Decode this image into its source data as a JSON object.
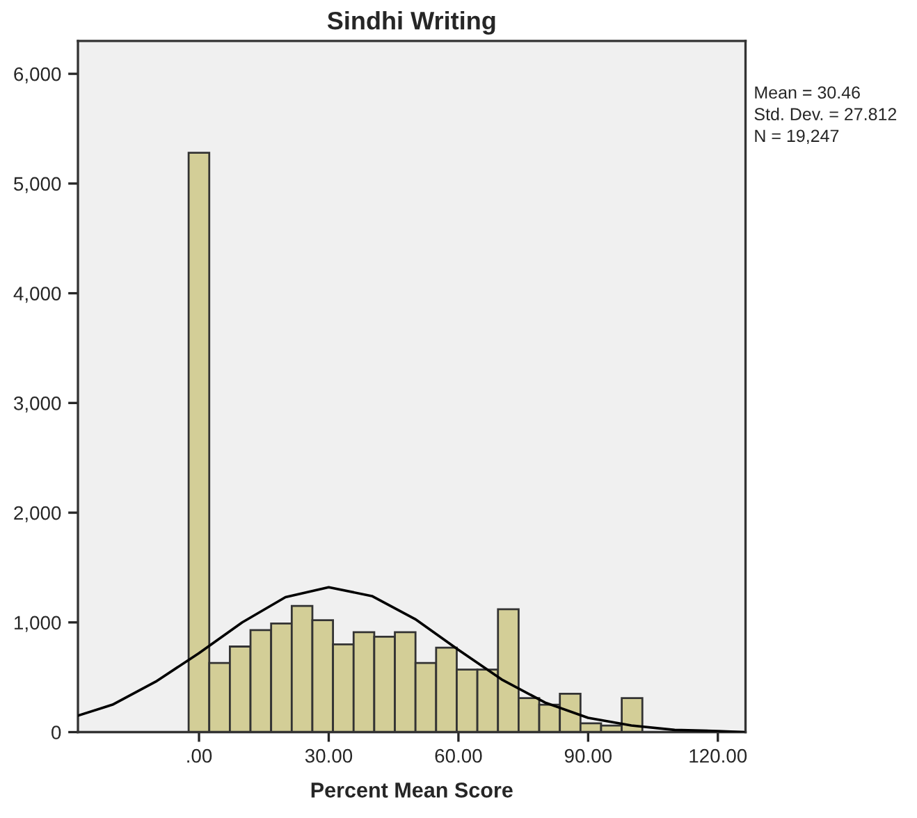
{
  "chart_data": {
    "type": "histogram",
    "title": "Sindhi Writing",
    "xlabel": "Percent Mean Score",
    "annotations": [
      "Mean = 30.46",
      "Std. Dev. = 27.812",
      "N = 19,247"
    ],
    "xlim": [
      -28,
      126.4
    ],
    "ylim": [
      0,
      6300
    ],
    "xticks": [
      {
        "value": 0,
        "label": ".00"
      },
      {
        "value": 30,
        "label": "30.00"
      },
      {
        "value": 60,
        "label": "60.00"
      },
      {
        "value": 90,
        "label": "90.00"
      },
      {
        "value": 120,
        "label": "120.00"
      }
    ],
    "yticks": [
      {
        "value": 0,
        "label": "0"
      },
      {
        "value": 1000,
        "label": "1,000"
      },
      {
        "value": 2000,
        "label": "2,000"
      },
      {
        "value": 3000,
        "label": "3,000"
      },
      {
        "value": 4000,
        "label": "4,000"
      },
      {
        "value": 5000,
        "label": "5,000"
      },
      {
        "value": 6000,
        "label": "6,000"
      }
    ],
    "grid": false,
    "legend": false,
    "series": [
      {
        "color": "#d3ce97",
        "bins": [
          -2.4,
          2.37,
          7.14,
          11.91,
          16.68,
          21.45,
          26.22,
          30.99,
          35.76,
          40.53,
          45.3,
          50.07,
          54.84,
          59.61,
          64.38,
          69.15,
          73.92,
          78.69,
          83.46,
          88.23,
          93.0,
          97.77,
          102.54
        ],
        "values": [
          5280,
          630,
          780,
          930,
          990,
          1150,
          1020,
          800,
          910,
          870,
          910,
          630,
          770,
          570,
          570,
          1120,
          310,
          250,
          350,
          80,
          60,
          310
        ]
      },
      {
        "type": "line",
        "color": "#000000",
        "x": [
          -28,
          -20,
          -10,
          0,
          10,
          20,
          30,
          40,
          50,
          60,
          70,
          80,
          90,
          100,
          110,
          120,
          126
        ],
        "values": [
          150,
          250,
          460,
          720,
          1000,
          1230,
          1320,
          1240,
          1030,
          750,
          480,
          270,
          130,
          60,
          20,
          10,
          0
        ]
      }
    ]
  }
}
